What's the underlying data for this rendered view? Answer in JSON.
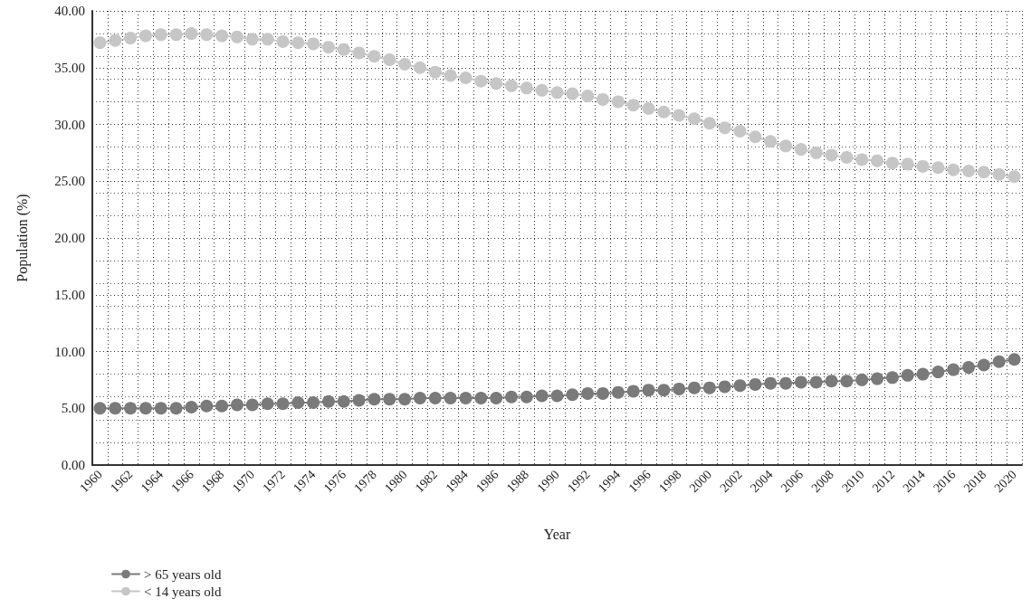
{
  "chart_data": {
    "type": "line",
    "xlabel": "Year",
    "ylabel": "Population (%)",
    "categories": [
      "1960",
      null,
      "1962",
      null,
      "1964",
      null,
      "1966",
      null,
      "1968",
      null,
      "1970",
      null,
      "1972",
      null,
      "1974",
      null,
      "1976",
      null,
      "1978",
      null,
      "1980",
      null,
      "1982",
      null,
      "1984",
      null,
      "1986",
      null,
      "1988",
      null,
      "1990",
      null,
      "1992",
      null,
      "1994",
      null,
      "1996",
      null,
      "1998",
      null,
      "2000",
      null,
      "2002",
      null,
      "2004",
      null,
      "2006",
      null,
      "2008",
      null,
      "2010",
      null,
      "2012",
      null,
      "2014",
      null,
      "2016",
      null,
      "2018",
      null,
      "2020"
    ],
    "series": [
      {
        "name": "> 65 years old",
        "color": "#7a7a7a",
        "values": [
          5.0,
          5.0,
          5.0,
          5.0,
          5.0,
          5.0,
          5.1,
          5.2,
          5.2,
          5.3,
          5.3,
          5.4,
          5.4,
          5.5,
          5.5,
          5.6,
          5.6,
          5.7,
          5.8,
          5.8,
          5.8,
          5.9,
          5.9,
          5.9,
          5.9,
          5.9,
          5.9,
          6.0,
          6.0,
          6.1,
          6.1,
          6.2,
          6.3,
          6.3,
          6.4,
          6.5,
          6.6,
          6.6,
          6.7,
          6.8,
          6.8,
          6.9,
          7.0,
          7.1,
          7.2,
          7.2,
          7.3,
          7.3,
          7.4,
          7.4,
          7.5,
          7.6,
          7.7,
          7.9,
          8.0,
          8.2,
          8.4,
          8.6,
          8.8,
          9.1,
          9.3
        ]
      },
      {
        "name": "< 14 years old",
        "color": "#c6c6c6",
        "values": [
          37.2,
          37.4,
          37.6,
          37.8,
          37.9,
          37.9,
          38.0,
          37.9,
          37.8,
          37.7,
          37.5,
          37.5,
          37.3,
          37.2,
          37.1,
          36.8,
          36.6,
          36.3,
          36.0,
          35.7,
          35.3,
          35.0,
          34.6,
          34.3,
          34.1,
          33.8,
          33.6,
          33.4,
          33.2,
          33.0,
          32.8,
          32.7,
          32.5,
          32.2,
          32.0,
          31.7,
          31.4,
          31.1,
          30.8,
          30.5,
          30.1,
          29.7,
          29.4,
          28.9,
          28.5,
          28.1,
          27.8,
          27.5,
          27.3,
          27.1,
          26.9,
          26.8,
          26.6,
          26.5,
          26.3,
          26.2,
          26.0,
          25.9,
          25.8,
          25.6,
          25.4
        ]
      }
    ],
    "ylim": [
      0,
      40
    ],
    "yticks": [
      {
        "value": 0,
        "label": "0.00"
      },
      {
        "value": 5,
        "label": "5.00"
      },
      {
        "value": 10,
        "label": "10.00"
      },
      {
        "value": 15,
        "label": "15.00"
      },
      {
        "value": 20,
        "label": "20.00"
      },
      {
        "value": 25,
        "label": "25.00"
      },
      {
        "value": 30,
        "label": "30.00"
      },
      {
        "value": 35,
        "label": "35.00"
      },
      {
        "value": 40,
        "label": "40.00"
      }
    ],
    "grid": true,
    "legend": "bottom left",
    "marker": "circle",
    "line_style": "solid"
  }
}
